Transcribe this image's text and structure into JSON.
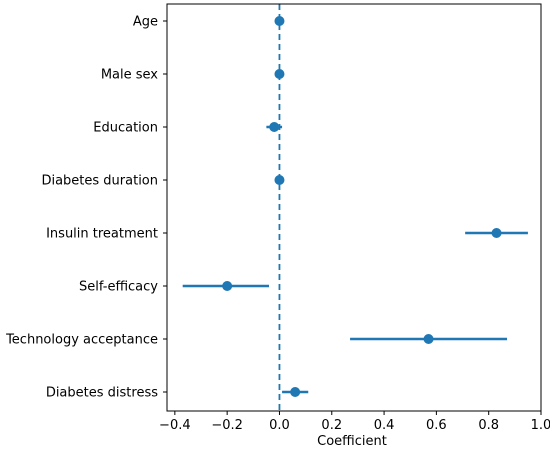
{
  "chart_data": {
    "type": "scatter",
    "subtype": "coefficient-plot",
    "title": "",
    "xlabel": "Coefficient",
    "ylabel": "",
    "xlim": [
      -0.43,
      1.0
    ],
    "x_ticks": [
      -0.4,
      -0.2,
      0.0,
      0.2,
      0.4,
      0.6,
      0.8,
      1.0
    ],
    "x_tick_labels": [
      "−0.4",
      "−0.2",
      "0.0",
      "0.2",
      "0.4",
      "0.6",
      "0.8",
      "1.0"
    ],
    "grid": false,
    "legend": "none",
    "reference_line": {
      "x": 0,
      "style": "dashed",
      "color": "#1f77b4"
    },
    "color": "#1f77b4",
    "categories": [
      "Age",
      "Male sex",
      "Education",
      "Diabetes duration",
      "Insulin treatment",
      "Self-efficacy",
      "Technology acceptance",
      "Diabetes distress"
    ],
    "series": [
      {
        "estimate": [
          0.0,
          0.0,
          -0.02,
          0.0,
          0.83,
          -0.2,
          0.57,
          0.06
        ],
        "ci_low": [
          0.0,
          0.0,
          -0.05,
          0.0,
          0.71,
          -0.37,
          0.27,
          0.01
        ],
        "ci_high": [
          0.0,
          0.0,
          0.01,
          0.0,
          0.95,
          -0.04,
          0.87,
          0.11
        ]
      }
    ]
  }
}
